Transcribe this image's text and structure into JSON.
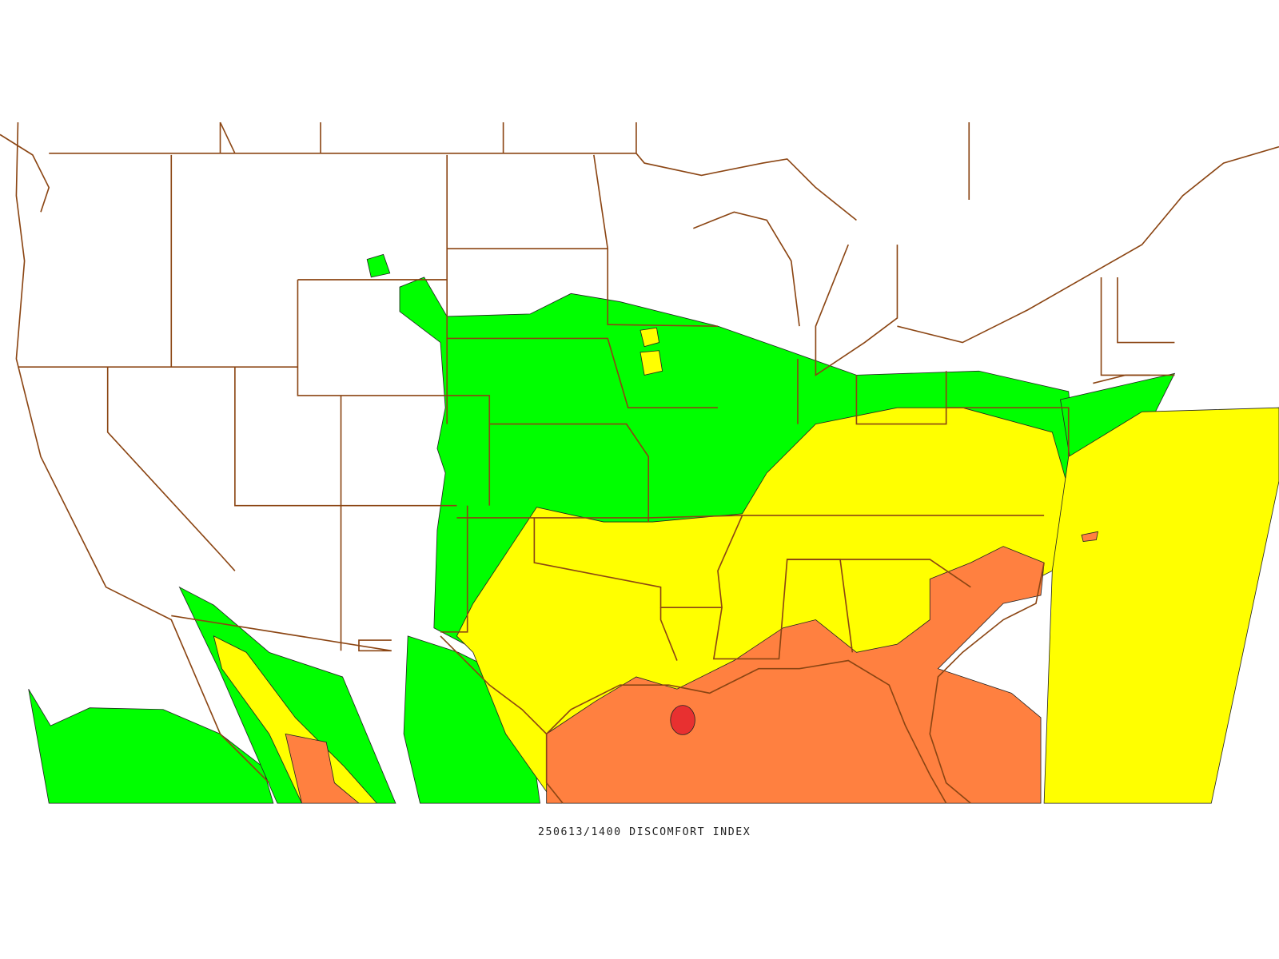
{
  "caption": "250613/1400 DISCOMFORT INDEX"
}
